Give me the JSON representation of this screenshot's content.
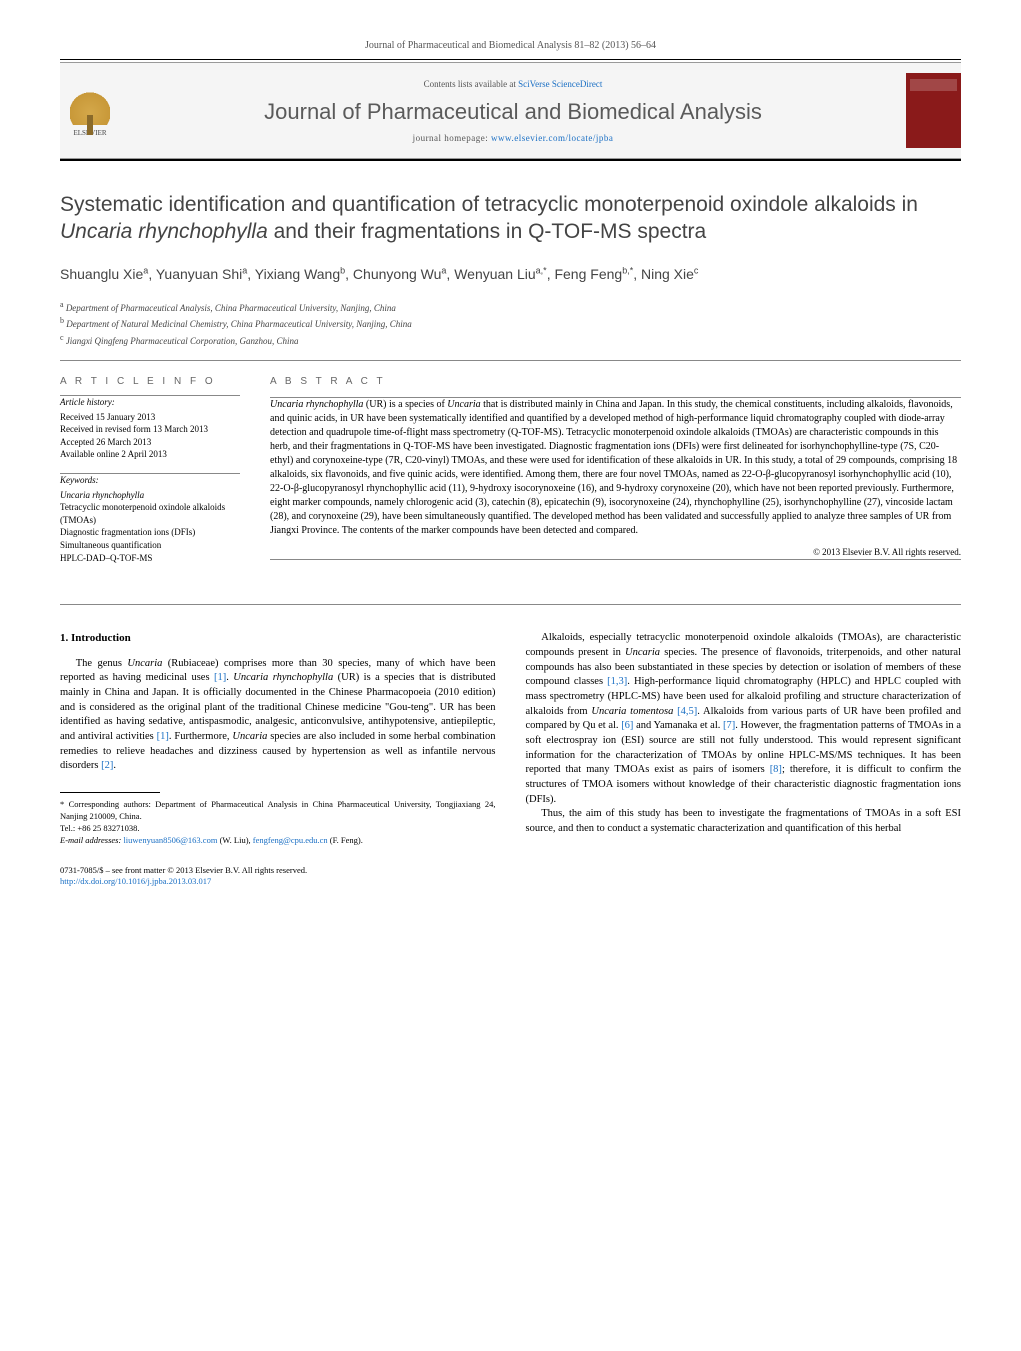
{
  "header": {
    "citation": "Journal of Pharmaceutical and Biomedical Analysis 81–82 (2013) 56–64",
    "contents_prefix": "Contents lists available at ",
    "contents_link": "SciVerse ScienceDirect",
    "journal_name": "Journal of Pharmaceutical and Biomedical Analysis",
    "homepage_prefix": "journal homepage: ",
    "homepage_link": "www.elsevier.com/locate/jpba",
    "elsevier_label": "ELSEVIER"
  },
  "article": {
    "title_pre": "Systematic identification and quantification of tetracyclic monoterpenoid oxindole alkaloids in ",
    "title_em": "Uncaria rhynchophylla",
    "title_post": " and their fragmentations in Q-TOF-MS spectra",
    "authors_html": "Shuanglu Xie<sup>a</sup>, Yuanyuan Shi<sup>a</sup>, Yixiang Wang<sup>b</sup>, Chunyong Wu<sup>a</sup>, Wenyuan Liu<sup>a,*</sup>, Feng Feng<sup>b,*</sup>, Ning Xie<sup>c</sup>",
    "affiliations": [
      {
        "sup": "a",
        "text": "Department of Pharmaceutical Analysis, China Pharmaceutical University, Nanjing, China"
      },
      {
        "sup": "b",
        "text": "Department of Natural Medicinal Chemistry, China Pharmaceutical University, Nanjing, China"
      },
      {
        "sup": "c",
        "text": "Jiangxi Qingfeng Pharmaceutical Corporation, Ganzhou, China"
      }
    ]
  },
  "info": {
    "head": "A R T I C L E   I N F O",
    "history_label": "Article history:",
    "history": [
      "Received 15 January 2013",
      "Received in revised form 13 March 2013",
      "Accepted 26 March 2013",
      "Available online 2 April 2013"
    ],
    "keywords_label": "Keywords:",
    "keywords": [
      "Uncaria rhynchophylla",
      "Tetracyclic monoterpenoid oxindole alkaloids (TMOAs)",
      "Diagnostic fragmentation ions (DFIs)",
      "Simultaneous quantification",
      "HPLC-DAD–Q-TOF-MS"
    ]
  },
  "abstract": {
    "head": "A B S T R A C T",
    "text": "Uncaria rhynchophylla (UR) is a species of Uncaria that is distributed mainly in China and Japan. In this study, the chemical constituents, including alkaloids, flavonoids, and quinic acids, in UR have been systematically identified and quantified by a developed method of high-performance liquid chromatography coupled with diode-array detection and quadrupole time-of-flight mass spectrometry (Q-TOF-MS). Tetracyclic monoterpenoid oxindole alkaloids (TMOAs) are characteristic compounds in this herb, and their fragmentations in Q-TOF-MS have been investigated. Diagnostic fragmentation ions (DFIs) were first delineated for isorhynchophylline-type (7S, C20-ethyl) and corynoxeine-type (7R, C20-vinyl) TMOAs, and these were used for identification of these alkaloids in UR. In this study, a total of 29 compounds, comprising 18 alkaloids, six flavonoids, and five quinic acids, were identified. Among them, there are four novel TMOAs, named as 22-O-β-glucopyranosyl isorhynchophyllic acid (10), 22-O-β-glucopyranosyl rhynchophyllic acid (11), 9-hydroxy isocorynoxeine (16), and 9-hydroxy corynoxeine (20), which have not been reported previously. Furthermore, eight marker compounds, namely chlorogenic acid (3), catechin (8), epicatechin (9), isocorynoxeine (24), rhynchophylline (25), isorhynchophylline (27), vincoside lactam (28), and corynoxeine (29), have been simultaneously quantified. The developed method has been validated and successfully applied to analyze three samples of UR from Jiangxi Province. The contents of the marker compounds have been detected and compared.",
    "copyright": "© 2013 Elsevier B.V. All rights reserved."
  },
  "body": {
    "section_head": "1. Introduction",
    "left_paras": [
      "The genus Uncaria (Rubiaceae) comprises more than 30 species, many of which have been reported as having medicinal uses [1]. Uncaria rhynchophylla (UR) is a species that is distributed mainly in China and Japan. It is officially documented in the Chinese Pharmacopoeia (2010 edition) and is considered as the original plant of the traditional Chinese medicine \"Gou-teng\". UR has been identified as having sedative, antispasmodic, analgesic, anticonvulsive, antihypotensive, antiepileptic, and antiviral activities [1]. Furthermore, Uncaria species are also included in some herbal combination remedies to relieve headaches and dizziness caused by hypertension as well as infantile nervous disorders [2]."
    ],
    "right_paras": [
      "Alkaloids, especially tetracyclic monoterpenoid oxindole alkaloids (TMOAs), are characteristic compounds present in Uncaria species. The presence of flavonoids, triterpenoids, and other natural compounds has also been substantiated in these species by detection or isolation of members of these compound classes [1,3]. High-performance liquid chromatography (HPLC) and HPLC coupled with mass spectrometry (HPLC-MS) have been used for alkaloid profiling and structure characterization of alkaloids from Uncaria tomentosa [4,5]. Alkaloids from various parts of UR have been profiled and compared by Qu et al. [6] and Yamanaka et al. [7]. However, the fragmentation patterns of TMOAs in a soft electrospray ion (ESI) source are still not fully understood. This would represent significant information for the characterization of TMOAs by online HPLC-MS/MS techniques. It has been reported that many TMOAs exist as pairs of isomers [8]; therefore, it is difficult to confirm the structures of TMOA isomers without knowledge of their characteristic diagnostic fragmentation ions (DFIs).",
      "Thus, the aim of this study has been to investigate the fragmentations of TMOAs in a soft ESI source, and then to conduct a systematic characterization and quantification of this herbal"
    ]
  },
  "footnote": {
    "corr_label": "* Corresponding authors: Department of Pharmaceutical Analysis in China Pharmaceutical University, Tongjiaxiang 24, Nanjing 210009, China.",
    "tel": "Tel.: +86 25 83271038.",
    "email_label": "E-mail addresses: ",
    "email1": "liuwenyuan8506@163.com",
    "email1_name": " (W. Liu), ",
    "email2": "fengfeng@cpu.edu.cn",
    "email2_name": " (F. Feng)."
  },
  "bottom": {
    "line1": "0731-7085/$ – see front matter © 2013 Elsevier B.V. All rights reserved.",
    "doi": "http://dx.doi.org/10.1016/j.jpba.2013.03.017"
  },
  "colors": {
    "link": "#1a6fc4",
    "text": "#000000",
    "muted": "#555555",
    "heading_gray": "#444444",
    "thumb": "#8a1a1a"
  }
}
